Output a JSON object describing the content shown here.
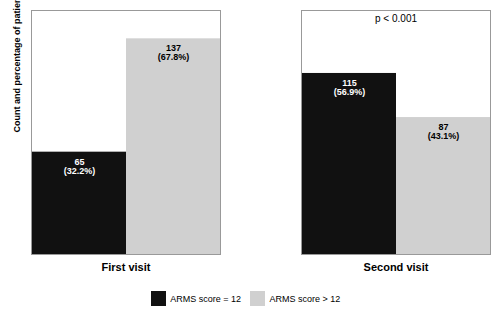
{
  "chart_data": {
    "type": "bar",
    "categories": [
      "First visit",
      "Second visit"
    ],
    "series": [
      {
        "name": "ARMS score = 12",
        "color": "#111111",
        "values": [
          65,
          115
        ],
        "value_labels": [
          "65\n(32.2%)",
          "115\n(56.9%)"
        ]
      },
      {
        "name": "ARMS score > 12",
        "color": "#d0d0d0",
        "values": [
          137,
          87
        ],
        "value_labels": [
          "137\n(67.8%)",
          "87\n(43.1%)"
        ]
      }
    ],
    "ylabel": "Count and percentage of patients",
    "ylim": [
      0,
      155
    ],
    "tick_labels": "x",
    "data_labels": true,
    "legend": "bottom",
    "annotations": [
      {
        "text": "p < 0.001",
        "x": "Second visit"
      }
    ]
  }
}
